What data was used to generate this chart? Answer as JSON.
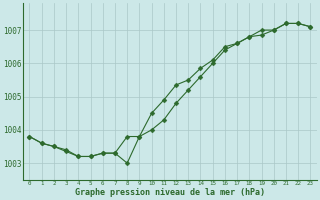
{
  "line1": [
    1003.8,
    1003.6,
    1003.5,
    1003.4,
    1003.2,
    1003.2,
    1003.3,
    1003.3,
    1003.8,
    1003.8,
    1004.0,
    1004.3,
    1004.8,
    1005.2,
    1005.6,
    1006.0,
    1006.4,
    1006.6,
    1006.8,
    1006.85,
    1007.0,
    1007.2,
    1007.2,
    1007.1
  ],
  "line2": [
    1003.8,
    1003.6,
    1003.5,
    1003.35,
    1003.2,
    1003.2,
    1003.3,
    1003.3,
    1003.0,
    1003.8,
    1004.5,
    1004.9,
    1005.35,
    1005.5,
    1005.85,
    1006.1,
    1006.5,
    1006.6,
    1006.8,
    1007.0,
    1007.0,
    1007.2,
    1007.2,
    1007.1
  ],
  "x": [
    0,
    1,
    2,
    3,
    4,
    5,
    6,
    7,
    8,
    9,
    10,
    11,
    12,
    13,
    14,
    15,
    16,
    17,
    18,
    19,
    20,
    21,
    22,
    23
  ],
  "ylim": [
    1002.5,
    1007.8
  ],
  "yticks": [
    1003,
    1004,
    1005,
    1006,
    1007
  ],
  "xtick_labels": [
    "0",
    "1",
    "2",
    "3",
    "4",
    "5",
    "6",
    "7",
    "8",
    "9",
    "10",
    "11",
    "12",
    "13",
    "14",
    "15",
    "16",
    "17",
    "18",
    "19",
    "20",
    "21",
    "22",
    "23"
  ],
  "xlabel": "Graphe pression niveau de la mer (hPa)",
  "line_color": "#2d6a2d",
  "bg_color": "#cce8e8",
  "grid_color": "#aac8c8",
  "marker": "D",
  "marker_size": 2.5,
  "linewidth": 0.8
}
